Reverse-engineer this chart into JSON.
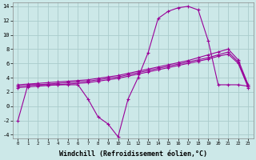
{
  "background_color": "#cce8e8",
  "grid_color": "#aacccc",
  "line_color": "#990099",
  "xlim": [
    -0.5,
    23.5
  ],
  "ylim": [
    -4.5,
    14.5
  ],
  "xlabel": "Windchill (Refroidissement éolien,°C)",
  "xlabel_fontsize": 6.0,
  "xtick_labels": [
    "0",
    "1",
    "2",
    "3",
    "4",
    "5",
    "6",
    "7",
    "8",
    "9",
    "10",
    "11",
    "12",
    "13",
    "14",
    "15",
    "16",
    "17",
    "18",
    "19",
    "20",
    "21",
    "22",
    "23"
  ],
  "ytick_values": [
    -4,
    -2,
    0,
    2,
    4,
    6,
    8,
    10,
    12,
    14
  ],
  "series": [
    {
      "x": [
        0,
        1,
        2,
        3,
        4,
        5,
        6,
        7,
        8,
        9,
        10,
        11,
        12,
        13,
        14,
        15,
        16,
        17,
        18,
        19,
        20,
        21,
        22,
        23
      ],
      "y": [
        -2.0,
        3.0,
        3.0,
        3.0,
        3.0,
        3.0,
        3.0,
        1.0,
        -1.5,
        -2.5,
        -4.3,
        1.0,
        4.0,
        7.5,
        12.3,
        13.3,
        13.8,
        14.0,
        13.5,
        9.2,
        3.0,
        3.0,
        3.0,
        2.8
      ]
    },
    {
      "x": [
        0,
        1,
        2,
        3,
        4,
        5,
        6,
        7,
        8,
        9,
        10,
        11,
        12,
        13,
        14,
        15,
        16,
        17,
        18,
        19,
        20,
        21,
        22,
        23
      ],
      "y": [
        3.0,
        3.1,
        3.2,
        3.3,
        3.4,
        3.5,
        3.6,
        3.7,
        3.9,
        4.1,
        4.3,
        4.6,
        4.9,
        5.2,
        5.5,
        5.8,
        6.1,
        6.4,
        6.8,
        7.2,
        7.6,
        8.0,
        6.5,
        3.0
      ]
    },
    {
      "x": [
        0,
        1,
        2,
        3,
        4,
        5,
        6,
        7,
        8,
        9,
        10,
        11,
        12,
        13,
        14,
        15,
        16,
        17,
        18,
        19,
        20,
        21,
        22,
        23
      ],
      "y": [
        2.8,
        2.9,
        3.0,
        3.1,
        3.2,
        3.3,
        3.4,
        3.5,
        3.7,
        3.9,
        4.1,
        4.4,
        4.7,
        5.0,
        5.3,
        5.6,
        5.9,
        6.2,
        6.5,
        6.8,
        7.2,
        7.6,
        6.2,
        2.8
      ]
    },
    {
      "x": [
        0,
        1,
        2,
        3,
        4,
        5,
        6,
        7,
        8,
        9,
        10,
        11,
        12,
        13,
        14,
        15,
        16,
        17,
        18,
        19,
        20,
        21,
        22,
        23
      ],
      "y": [
        2.6,
        2.7,
        2.8,
        2.9,
        3.0,
        3.1,
        3.2,
        3.3,
        3.5,
        3.7,
        3.9,
        4.2,
        4.5,
        4.8,
        5.1,
        5.4,
        5.7,
        6.0,
        6.3,
        6.6,
        7.0,
        7.3,
        6.0,
        2.6
      ]
    }
  ]
}
